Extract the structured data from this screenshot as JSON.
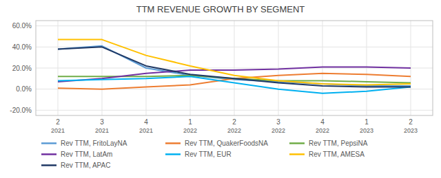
{
  "chart_data": {
    "type": "line",
    "title": "TTM REVENUE GROWTH BY SEGMENT",
    "categories": [
      [
        "2",
        "2021"
      ],
      [
        "3",
        "2021"
      ],
      [
        "4",
        "2021"
      ],
      [
        "1",
        "2022"
      ],
      [
        "2",
        "2022"
      ],
      [
        "3",
        "2022"
      ],
      [
        "4",
        "2022"
      ],
      [
        "1",
        "2023"
      ],
      [
        "2",
        "2023"
      ]
    ],
    "series": [
      {
        "name": "Rev TTM, FritoLayNA",
        "color": "#5b9bd5",
        "values": [
          0.38,
          0.41,
          0.2,
          0.13,
          0.09,
          0.07,
          0.05,
          0.03,
          0.03
        ]
      },
      {
        "name": "Rev TTM, QuakerFoodsNA",
        "color": "#ed7d31",
        "values": [
          0.01,
          0.0,
          0.02,
          0.04,
          0.1,
          0.13,
          0.15,
          0.14,
          0.12
        ]
      },
      {
        "name": "Rev TTM, PepsiNA",
        "color": "#70ad47",
        "values": [
          0.12,
          0.12,
          0.12,
          0.13,
          0.1,
          0.08,
          0.08,
          0.07,
          0.06
        ]
      },
      {
        "name": "Rev TTM, LatAm",
        "color": "#7030a0",
        "values": [
          0.07,
          0.1,
          0.15,
          0.18,
          0.18,
          0.19,
          0.21,
          0.21,
          0.2
        ]
      },
      {
        "name": "Rev TTM, EUR",
        "color": "#00b0f0",
        "values": [
          0.08,
          0.09,
          0.1,
          0.12,
          0.06,
          0.0,
          -0.04,
          -0.02,
          0.02
        ]
      },
      {
        "name": "Rev TTM, AMESA",
        "color": "#ffc000",
        "values": [
          0.47,
          0.47,
          0.32,
          0.22,
          0.13,
          0.08,
          0.05,
          0.04,
          0.05
        ]
      },
      {
        "name": "Rev TTM, APAC",
        "color": "#1f3864",
        "values": [
          0.38,
          0.4,
          0.22,
          0.14,
          0.1,
          0.06,
          0.03,
          0.02,
          0.02
        ]
      }
    ],
    "ylim": [
      -0.25,
      0.65
    ],
    "yticks": [
      {
        "value": -0.2,
        "label": "-20.0%"
      },
      {
        "value": 0.0,
        "label": "0.0%"
      },
      {
        "value": 0.2,
        "label": "20.0%"
      },
      {
        "value": 0.4,
        "label": "40.0%"
      },
      {
        "value": 0.6,
        "label": "60.0%"
      }
    ],
    "grid": true,
    "legend": "bottom"
  }
}
